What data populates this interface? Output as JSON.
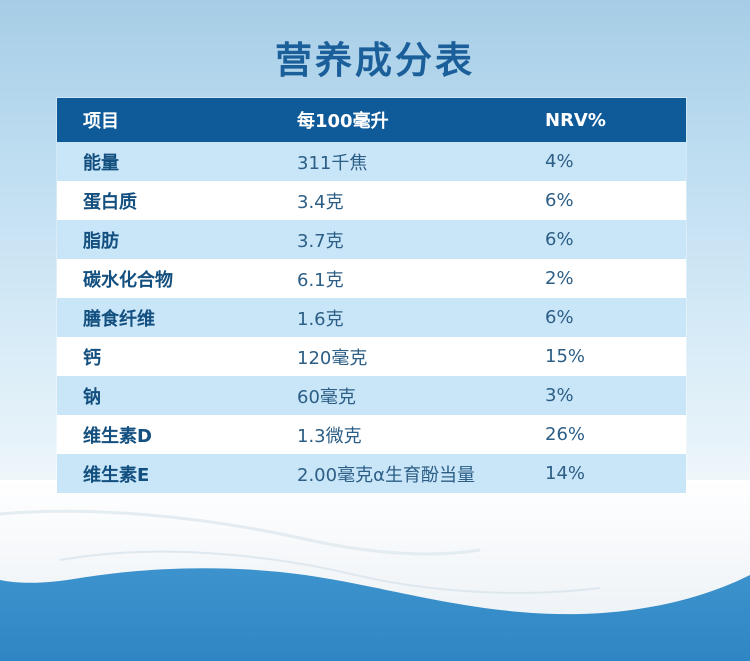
{
  "title": "营养成分表",
  "table": {
    "headers": [
      "项目",
      "每100毫升",
      "NRV%"
    ],
    "rows": [
      [
        "能量",
        "311千焦",
        "4%"
      ],
      [
        "蛋白质",
        "3.4克",
        "6%"
      ],
      [
        "脂肪",
        "3.7克",
        "6%"
      ],
      [
        "碳水化合物",
        "6.1克",
        "2%"
      ],
      [
        "膳食纤维",
        "1.6克",
        "6%"
      ],
      [
        "钙",
        "120毫克",
        "15%"
      ],
      [
        "钠",
        "60毫克",
        "3%"
      ],
      [
        "维生素D",
        "1.3微克",
        "26%"
      ],
      [
        "维生素E",
        "2.00毫克α生育酚当量",
        "14%"
      ]
    ]
  },
  "colors": {
    "header_bg": "#0f5a98",
    "row_light": "#c9e6f8",
    "row_white": "#ffffff",
    "title": "#1b5f9a"
  }
}
